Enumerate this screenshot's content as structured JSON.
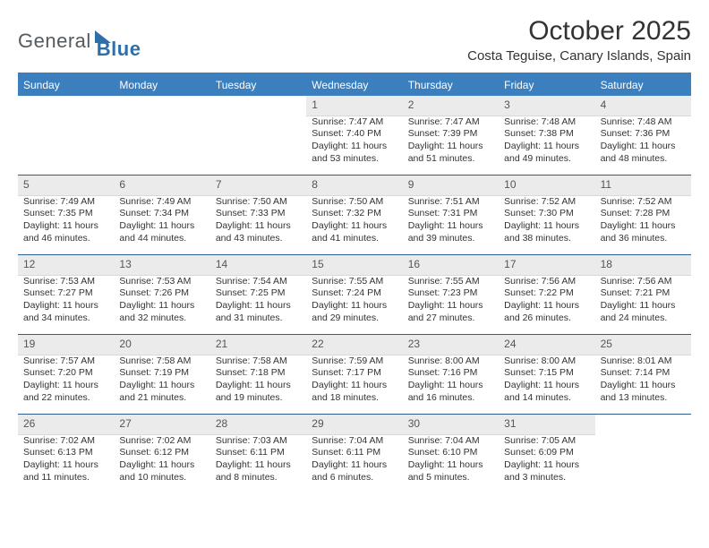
{
  "logo": {
    "general": "General",
    "blue": "Blue"
  },
  "title": "October 2025",
  "location": "Costa Teguise, Canary Islands, Spain",
  "colors": {
    "header_bg": "#3b7fbf",
    "header_text": "#ffffff",
    "daynum_bg": "#ebebeb",
    "week_sep": "#2c5f8d",
    "text": "#333333"
  },
  "dayNames": [
    "Sunday",
    "Monday",
    "Tuesday",
    "Wednesday",
    "Thursday",
    "Friday",
    "Saturday"
  ],
  "weeks": [
    [
      {
        "n": "",
        "sr": "",
        "ss": "",
        "dl": ""
      },
      {
        "n": "",
        "sr": "",
        "ss": "",
        "dl": ""
      },
      {
        "n": "",
        "sr": "",
        "ss": "",
        "dl": ""
      },
      {
        "n": "1",
        "sr": "Sunrise: 7:47 AM",
        "ss": "Sunset: 7:40 PM",
        "dl": "Daylight: 11 hours and 53 minutes."
      },
      {
        "n": "2",
        "sr": "Sunrise: 7:47 AM",
        "ss": "Sunset: 7:39 PM",
        "dl": "Daylight: 11 hours and 51 minutes."
      },
      {
        "n": "3",
        "sr": "Sunrise: 7:48 AM",
        "ss": "Sunset: 7:38 PM",
        "dl": "Daylight: 11 hours and 49 minutes."
      },
      {
        "n": "4",
        "sr": "Sunrise: 7:48 AM",
        "ss": "Sunset: 7:36 PM",
        "dl": "Daylight: 11 hours and 48 minutes."
      }
    ],
    [
      {
        "n": "5",
        "sr": "Sunrise: 7:49 AM",
        "ss": "Sunset: 7:35 PM",
        "dl": "Daylight: 11 hours and 46 minutes."
      },
      {
        "n": "6",
        "sr": "Sunrise: 7:49 AM",
        "ss": "Sunset: 7:34 PM",
        "dl": "Daylight: 11 hours and 44 minutes."
      },
      {
        "n": "7",
        "sr": "Sunrise: 7:50 AM",
        "ss": "Sunset: 7:33 PM",
        "dl": "Daylight: 11 hours and 43 minutes."
      },
      {
        "n": "8",
        "sr": "Sunrise: 7:50 AM",
        "ss": "Sunset: 7:32 PM",
        "dl": "Daylight: 11 hours and 41 minutes."
      },
      {
        "n": "9",
        "sr": "Sunrise: 7:51 AM",
        "ss": "Sunset: 7:31 PM",
        "dl": "Daylight: 11 hours and 39 minutes."
      },
      {
        "n": "10",
        "sr": "Sunrise: 7:52 AM",
        "ss": "Sunset: 7:30 PM",
        "dl": "Daylight: 11 hours and 38 minutes."
      },
      {
        "n": "11",
        "sr": "Sunrise: 7:52 AM",
        "ss": "Sunset: 7:28 PM",
        "dl": "Daylight: 11 hours and 36 minutes."
      }
    ],
    [
      {
        "n": "12",
        "sr": "Sunrise: 7:53 AM",
        "ss": "Sunset: 7:27 PM",
        "dl": "Daylight: 11 hours and 34 minutes."
      },
      {
        "n": "13",
        "sr": "Sunrise: 7:53 AM",
        "ss": "Sunset: 7:26 PM",
        "dl": "Daylight: 11 hours and 32 minutes."
      },
      {
        "n": "14",
        "sr": "Sunrise: 7:54 AM",
        "ss": "Sunset: 7:25 PM",
        "dl": "Daylight: 11 hours and 31 minutes."
      },
      {
        "n": "15",
        "sr": "Sunrise: 7:55 AM",
        "ss": "Sunset: 7:24 PM",
        "dl": "Daylight: 11 hours and 29 minutes."
      },
      {
        "n": "16",
        "sr": "Sunrise: 7:55 AM",
        "ss": "Sunset: 7:23 PM",
        "dl": "Daylight: 11 hours and 27 minutes."
      },
      {
        "n": "17",
        "sr": "Sunrise: 7:56 AM",
        "ss": "Sunset: 7:22 PM",
        "dl": "Daylight: 11 hours and 26 minutes."
      },
      {
        "n": "18",
        "sr": "Sunrise: 7:56 AM",
        "ss": "Sunset: 7:21 PM",
        "dl": "Daylight: 11 hours and 24 minutes."
      }
    ],
    [
      {
        "n": "19",
        "sr": "Sunrise: 7:57 AM",
        "ss": "Sunset: 7:20 PM",
        "dl": "Daylight: 11 hours and 22 minutes."
      },
      {
        "n": "20",
        "sr": "Sunrise: 7:58 AM",
        "ss": "Sunset: 7:19 PM",
        "dl": "Daylight: 11 hours and 21 minutes."
      },
      {
        "n": "21",
        "sr": "Sunrise: 7:58 AM",
        "ss": "Sunset: 7:18 PM",
        "dl": "Daylight: 11 hours and 19 minutes."
      },
      {
        "n": "22",
        "sr": "Sunrise: 7:59 AM",
        "ss": "Sunset: 7:17 PM",
        "dl": "Daylight: 11 hours and 18 minutes."
      },
      {
        "n": "23",
        "sr": "Sunrise: 8:00 AM",
        "ss": "Sunset: 7:16 PM",
        "dl": "Daylight: 11 hours and 16 minutes."
      },
      {
        "n": "24",
        "sr": "Sunrise: 8:00 AM",
        "ss": "Sunset: 7:15 PM",
        "dl": "Daylight: 11 hours and 14 minutes."
      },
      {
        "n": "25",
        "sr": "Sunrise: 8:01 AM",
        "ss": "Sunset: 7:14 PM",
        "dl": "Daylight: 11 hours and 13 minutes."
      }
    ],
    [
      {
        "n": "26",
        "sr": "Sunrise: 7:02 AM",
        "ss": "Sunset: 6:13 PM",
        "dl": "Daylight: 11 hours and 11 minutes."
      },
      {
        "n": "27",
        "sr": "Sunrise: 7:02 AM",
        "ss": "Sunset: 6:12 PM",
        "dl": "Daylight: 11 hours and 10 minutes."
      },
      {
        "n": "28",
        "sr": "Sunrise: 7:03 AM",
        "ss": "Sunset: 6:11 PM",
        "dl": "Daylight: 11 hours and 8 minutes."
      },
      {
        "n": "29",
        "sr": "Sunrise: 7:04 AM",
        "ss": "Sunset: 6:11 PM",
        "dl": "Daylight: 11 hours and 6 minutes."
      },
      {
        "n": "30",
        "sr": "Sunrise: 7:04 AM",
        "ss": "Sunset: 6:10 PM",
        "dl": "Daylight: 11 hours and 5 minutes."
      },
      {
        "n": "31",
        "sr": "Sunrise: 7:05 AM",
        "ss": "Sunset: 6:09 PM",
        "dl": "Daylight: 11 hours and 3 minutes."
      },
      {
        "n": "",
        "sr": "",
        "ss": "",
        "dl": ""
      }
    ]
  ]
}
